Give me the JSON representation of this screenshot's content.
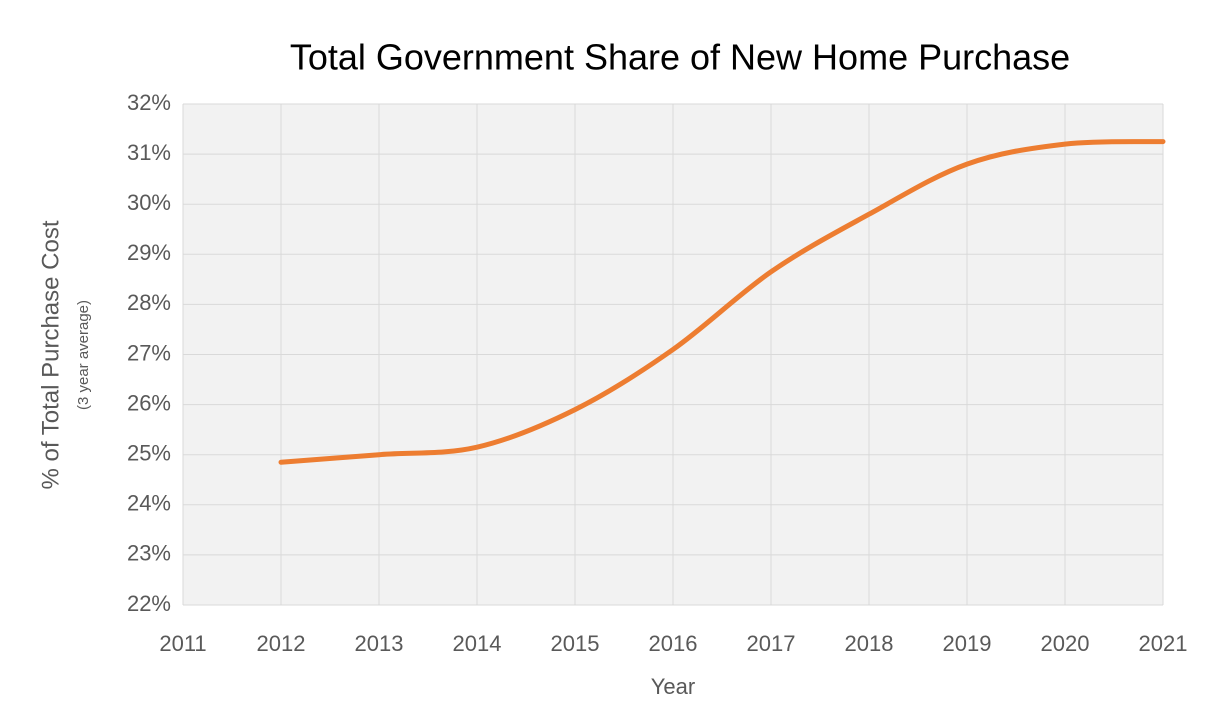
{
  "chart_data": {
    "type": "line",
    "title": "Total Government Share of New Home Purchase",
    "y_label": "% of Total Purchase Cost",
    "y_sublabel": "(3 year average)",
    "x_label": "Year",
    "x": [
      2012,
      2013,
      2014,
      2015,
      2016,
      2017,
      2018,
      2019,
      2020,
      2021
    ],
    "series": [
      {
        "color": "#ed7d31",
        "values": [
          24.85,
          25.0,
          25.15,
          25.9,
          27.1,
          28.65,
          29.8,
          30.8,
          31.2,
          31.25
        ]
      }
    ],
    "xlim": [
      2011,
      2021
    ],
    "xticks": [
      2011,
      2012,
      2013,
      2014,
      2015,
      2016,
      2017,
      2018,
      2019,
      2020,
      2021
    ],
    "ylim": [
      22,
      32
    ],
    "yticks": [
      {
        "value": 22,
        "label": "22%"
      },
      {
        "value": 23,
        "label": "23%"
      },
      {
        "value": 24,
        "label": "24%"
      },
      {
        "value": 25,
        "label": "25%"
      },
      {
        "value": 26,
        "label": "26%"
      },
      {
        "value": 27,
        "label": "27%"
      },
      {
        "value": 28,
        "label": "28%"
      },
      {
        "value": 29,
        "label": "29%"
      },
      {
        "value": 30,
        "label": "30%"
      },
      {
        "value": 31,
        "label": "31%"
      },
      {
        "value": 32,
        "label": "32%"
      }
    ],
    "grid": true,
    "smooth": true
  }
}
